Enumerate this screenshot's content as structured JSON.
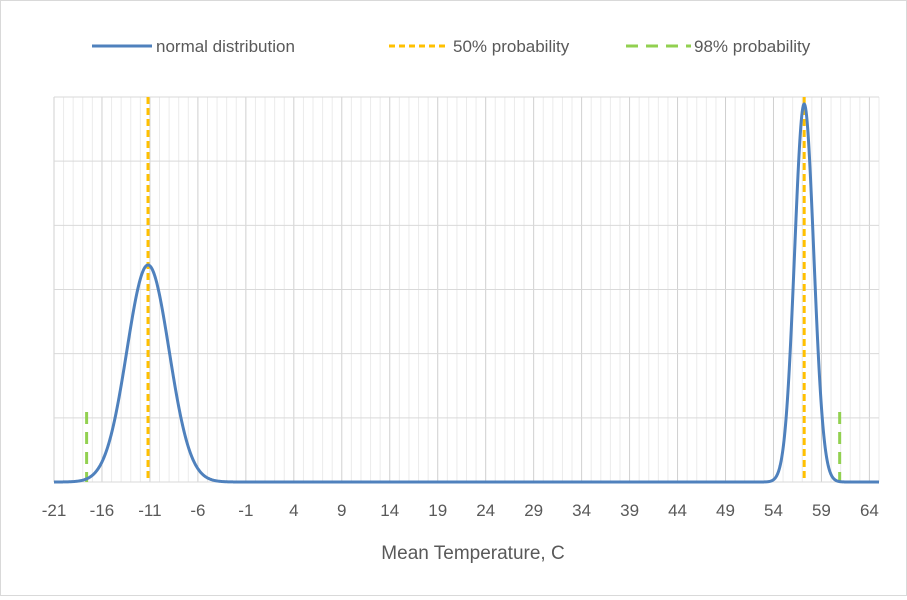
{
  "chart_data": {
    "type": "line",
    "xlabel": "Mean Temperature, C",
    "ylabel": "",
    "x_tick_labels": [
      "-21",
      "-16",
      "-11",
      "-6",
      "-1",
      "4",
      "9",
      "14",
      "19",
      "24",
      "29",
      "34",
      "39",
      "44",
      "49",
      "54",
      "59",
      "64"
    ],
    "xlim": [
      -21,
      65
    ],
    "ylim": [
      0,
      0.11
    ],
    "y_tick_labels_shown": false,
    "grid": true,
    "legend_position": "top",
    "series": [
      {
        "name": "normal distribution",
        "color": "#4f81bd",
        "style": "solid",
        "components": [
          {
            "mean": -11.2,
            "sd": 2.2,
            "peak": 0.062
          },
          {
            "mean": 57.2,
            "sd": 1.0,
            "peak": 0.108
          }
        ]
      },
      {
        "name": "50% probability",
        "color": "#ffc000",
        "style": "dashed",
        "lines": [
          {
            "x": -11.2,
            "y_top": 0.11
          },
          {
            "x": 57.2,
            "y_top": 0.11
          }
        ]
      },
      {
        "name": "98% probability",
        "color": "#92d050",
        "style": "dashed",
        "lines": [
          {
            "x": -17.6,
            "y_top": 0.02
          },
          {
            "x": 60.9,
            "y_top": 0.02
          }
        ]
      }
    ]
  }
}
